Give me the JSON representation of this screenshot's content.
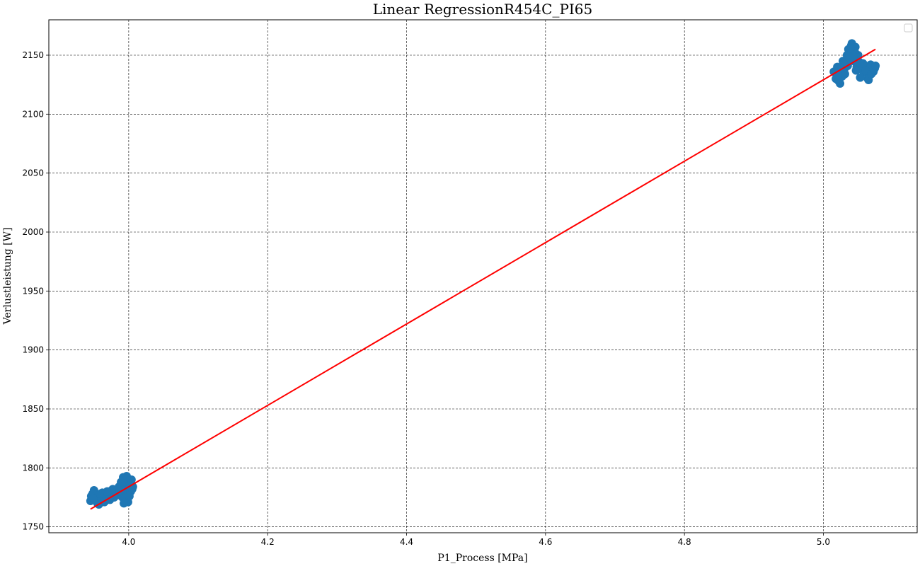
{
  "chart_data": {
    "type": "scatter",
    "title": "Linear RegressionR454C_PI65",
    "xlabel": "P1_Process [MPa]",
    "ylabel": "Verlustleistung [W]",
    "xlim": [
      3.885,
      5.135
    ],
    "ylim": [
      1745,
      2180
    ],
    "x_ticks": [
      4.0,
      4.2,
      4.4,
      4.6,
      4.8,
      5.0
    ],
    "x_tick_labels": [
      "4.0",
      "4.2",
      "4.4",
      "4.6",
      "4.8",
      "5.0"
    ],
    "y_ticks": [
      1750,
      1800,
      1850,
      1900,
      1950,
      2000,
      2050,
      2100,
      2150
    ],
    "y_tick_labels": [
      "1750",
      "1800",
      "1850",
      "1900",
      "1950",
      "2000",
      "2050",
      "2100",
      "2150"
    ],
    "grid": true,
    "legend": "top-right (empty)",
    "colors": {
      "points": "#1f77b4",
      "fit_line": "#ff0000"
    },
    "series": [
      {
        "kind": "points",
        "x": [
          3.945,
          3.948,
          3.952,
          3.955,
          3.958,
          3.96,
          3.962,
          3.965,
          3.968,
          3.97,
          3.972,
          3.975,
          3.978,
          3.98,
          3.982,
          3.985,
          3.988,
          3.99,
          3.992,
          3.994,
          3.996,
          3.998,
          4.0,
          4.002,
          4.004,
          4.006,
          3.95,
          3.957,
          3.963,
          3.973,
          3.983,
          3.991,
          3.995,
          3.999,
          4.003,
          3.946,
          3.954,
          3.966,
          3.977,
          3.987,
          3.993,
          3.997,
          4.001,
          4.005,
          3.949,
          3.959,
          3.969,
          3.979,
          3.986,
          3.989,
          5.015,
          5.018,
          5.02,
          5.022,
          5.025,
          5.028,
          5.03,
          5.032,
          5.034,
          5.036,
          5.038,
          5.04,
          5.042,
          5.044,
          5.046,
          5.048,
          5.05,
          5.052,
          5.055,
          5.058,
          5.06,
          5.062,
          5.064,
          5.066,
          5.068,
          5.07,
          5.072,
          5.074,
          5.024,
          5.027,
          5.033,
          5.037,
          5.041,
          5.045,
          5.049,
          5.031,
          5.035,
          5.039,
          5.043,
          5.047,
          5.021,
          5.026,
          5.029,
          5.053,
          5.057,
          5.061,
          5.065,
          5.069,
          5.073,
          5.075
        ],
        "y": [
          1772,
          1778,
          1775,
          1770,
          1776,
          1773,
          1779,
          1771,
          1777,
          1774,
          1780,
          1775,
          1778,
          1776,
          1781,
          1777,
          1783,
          1787,
          1792,
          1779,
          1785,
          1789,
          1782,
          1786,
          1790,
          1784,
          1781,
          1769,
          1775,
          1773,
          1779,
          1775,
          1774,
          1771,
          1780,
          1776,
          1772,
          1778,
          1782,
          1780,
          1770,
          1793,
          1776,
          1782,
          1774,
          1778,
          1780,
          1775,
          1784,
          1788,
          2136,
          2130,
          2140,
          2128,
          2134,
          2145,
          2138,
          2142,
          2150,
          2155,
          2148,
          2158,
          2152,
          2145,
          2157,
          2140,
          2150,
          2144,
          2138,
          2136,
          2140,
          2135,
          2130,
          2138,
          2142,
          2140,
          2136,
          2139,
          2126,
          2132,
          2146,
          2152,
          2160,
          2153,
          2148,
          2134,
          2141,
          2156,
          2149,
          2137,
          2133,
          2139,
          2143,
          2131,
          2143,
          2137,
          2129,
          2134,
          2138,
          2141
        ]
      },
      {
        "kind": "fit-line",
        "x": [
          3.945,
          5.075
        ],
        "y": [
          1765,
          2155
        ]
      }
    ]
  }
}
